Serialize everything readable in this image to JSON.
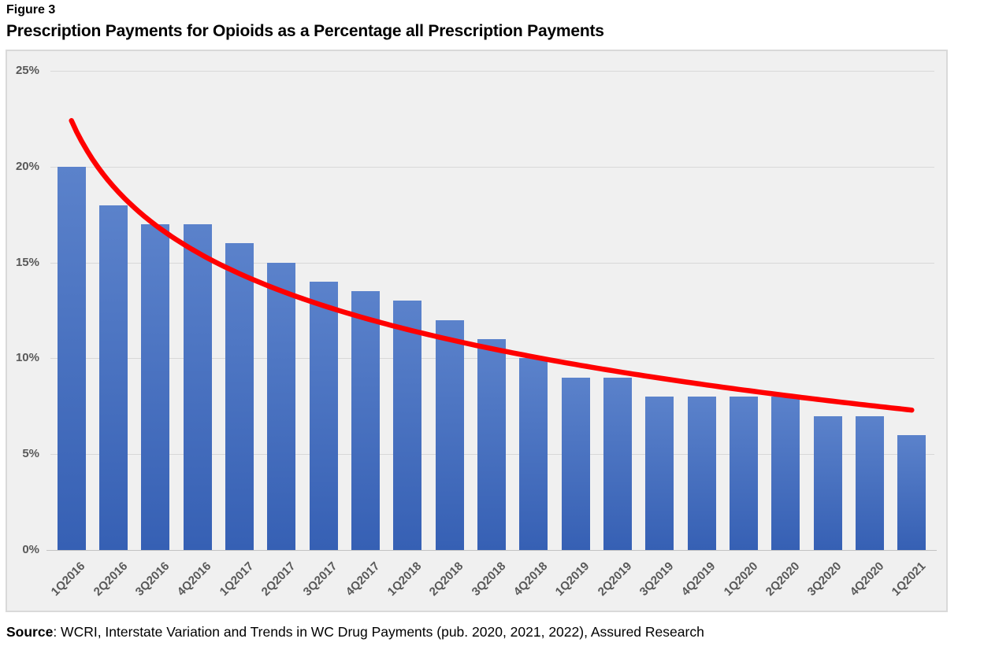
{
  "figure_label": "Figure 3",
  "title": "Prescription Payments for Opioids as a Percentage all Prescription Payments",
  "source": {
    "prefix": "Source",
    "text": ": WCRI, Interstate Variation and Trends in WC Drug Payments (pub. 2020, 2021, 2022), Assured Research"
  },
  "chart_data": {
    "type": "bar",
    "title": "Prescription Payments for Opioids as a Percentage all Prescription Payments",
    "categories": [
      "1Q2016",
      "2Q2016",
      "3Q2016",
      "4Q2016",
      "1Q2017",
      "2Q2017",
      "3Q2017",
      "4Q2017",
      "1Q2018",
      "2Q2018",
      "3Q2018",
      "4Q2018",
      "1Q2019",
      "2Q2019",
      "3Q2019",
      "4Q2019",
      "1Q2020",
      "2Q2020",
      "3Q2020",
      "4Q2020",
      "1Q2021"
    ],
    "values": [
      20,
      18,
      17,
      17,
      16,
      15,
      14,
      13.5,
      13,
      12,
      11,
      10,
      9,
      9,
      8,
      8,
      8,
      8,
      7,
      7,
      6
    ],
    "xlabel": "",
    "ylabel": "",
    "ylim": [
      0,
      25
    ],
    "yticks": [
      {
        "v": 0,
        "label": "0%"
      },
      {
        "v": 5,
        "label": "5%"
      },
      {
        "v": 10,
        "label": "10%"
      },
      {
        "v": 15,
        "label": "15%"
      },
      {
        "v": 20,
        "label": "20%"
      },
      {
        "v": 25,
        "label": "25%"
      }
    ],
    "grid": true,
    "legend": "none",
    "bar_color_top": "#5b82cb",
    "bar_color_bottom": "#3660b4",
    "trendline": {
      "type": "logarithmic",
      "a": 22.4,
      "b": -4.96,
      "color": "#ff0000",
      "stroke_width": 6.5,
      "values": [
        22.4,
        19.0,
        17.0,
        15.5,
        14.4,
        13.5,
        12.8,
        12.1,
        11.5,
        11.0,
        10.5,
        10.1,
        9.7,
        9.3,
        9.0,
        8.6,
        8.3,
        8.1,
        7.8,
        7.5,
        7.3
      ]
    }
  }
}
